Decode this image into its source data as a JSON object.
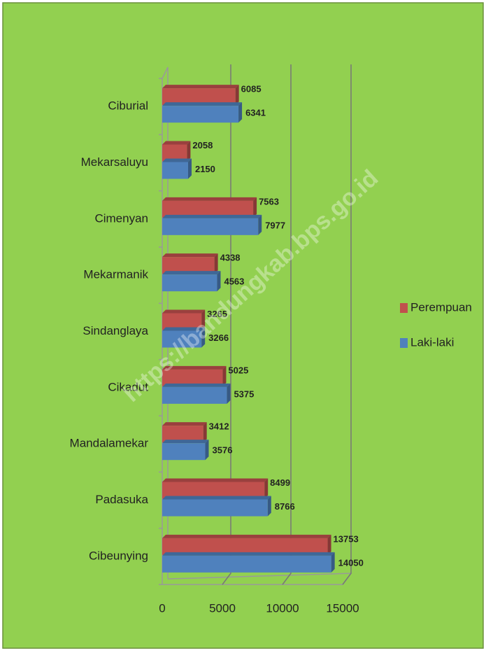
{
  "chart_data": {
    "type": "bar",
    "orientation": "horizontal",
    "categories": [
      "Ciburial",
      "Mekarsaluyu",
      "Cimenyan",
      "Mekarmanik",
      "Sindanglaya",
      "Cikadut",
      "Mandalamekar",
      "Padasuka",
      "Cibeunying"
    ],
    "series": [
      {
        "name": "Perempuan",
        "color": "#c0504d",
        "values": [
          6085,
          2058,
          7563,
          4338,
          3265,
          5025,
          3412,
          8499,
          13753
        ]
      },
      {
        "name": "Laki-laki",
        "color": "#4f81bd",
        "values": [
          6341,
          2150,
          7977,
          4563,
          3266,
          5375,
          3576,
          8766,
          14050
        ]
      }
    ],
    "xlim": [
      0,
      15000
    ],
    "xticks": [
      0,
      5000,
      10000,
      15000
    ],
    "grid": true,
    "legend": "right",
    "watermark": "https://bandungkab.bps.go.id"
  }
}
